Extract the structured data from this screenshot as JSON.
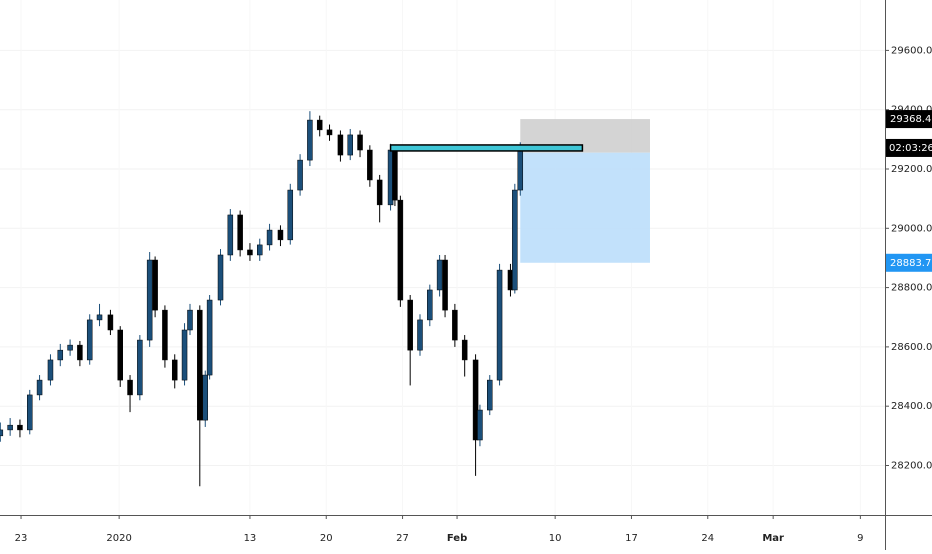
{
  "chart_data": {
    "type": "candlestick",
    "x": [
      -1.9,
      -1.0,
      -0.1,
      0.8,
      1.7,
      2.7,
      3.6,
      4.5,
      5.4,
      6.3,
      7.2,
      8.2,
      9.1,
      10.0,
      10.9,
      11.8,
      12.3,
      13.2,
      14.1,
      15.0,
      15.5,
      16.4,
      16.9,
      17.3,
      18.3,
      19.2,
      20.1,
      21.0,
      21.9,
      22.8,
      23.8,
      24.7,
      25.6,
      26.5,
      27.4,
      28.3,
      29.3,
      30.2,
      31.1,
      32.0,
      32.9,
      33.9,
      34.3,
      34.8,
      35.7,
      36.6,
      37.5,
      38.4,
      38.9,
      39.8,
      40.7,
      41.7,
      42.1,
      43.0,
      43.9,
      44.9,
      45.3,
      45.8
    ],
    "open": [
      28300,
      28320,
      28336,
      28320,
      28438,
      28488,
      28556,
      28589,
      28606,
      28556,
      28691,
      28708,
      28657,
      28488,
      28438,
      28623,
      28893,
      28724,
      28556,
      28488,
      28657,
      28724,
      28353,
      28505,
      28758,
      28910,
      29045,
      28927,
      28910,
      28944,
      28994,
      28961,
      29129,
      29230,
      29365,
      29332,
      29315,
      29247,
      29315,
      29264,
      29163,
      29079,
      29264,
      29095,
      28758,
      28589,
      28691,
      28792,
      28893,
      28724,
      28623,
      28556,
      28286,
      28387,
      28488,
      28859,
      28792,
      29129
    ],
    "high": [
      28345,
      28360,
      28355,
      28455,
      28505,
      28575,
      28610,
      28625,
      28620,
      28710,
      28745,
      28725,
      28670,
      28505,
      28640,
      28920,
      28905,
      28740,
      28575,
      28680,
      28745,
      28740,
      28520,
      28775,
      28930,
      29065,
      29060,
      28950,
      28965,
      29015,
      29010,
      29150,
      29250,
      29395,
      29380,
      29350,
      29330,
      29335,
      29330,
      29280,
      29180,
      29285,
      29280,
      29110,
      28775,
      28710,
      28810,
      28910,
      28910,
      28745,
      28640,
      28575,
      28405,
      28505,
      28880,
      28880,
      29150,
      29290
    ],
    "low": [
      28280,
      28300,
      28295,
      28305,
      28420,
      28470,
      28535,
      28570,
      28535,
      28540,
      28670,
      28640,
      28465,
      28380,
      28420,
      28600,
      28700,
      28530,
      28460,
      28470,
      28640,
      28130,
      28330,
      28490,
      28740,
      28890,
      28905,
      28890,
      28890,
      28925,
      28940,
      28945,
      29110,
      29210,
      29310,
      29295,
      29225,
      29230,
      29240,
      29140,
      29020,
      29060,
      29075,
      28735,
      28470,
      28570,
      28670,
      28770,
      28700,
      28600,
      28500,
      28165,
      28265,
      28370,
      28470,
      28770,
      28780,
      29110
    ],
    "close": [
      28320,
      28336,
      28320,
      28438,
      28488,
      28556,
      28589,
      28606,
      28556,
      28691,
      28708,
      28657,
      28488,
      28438,
      28623,
      28893,
      28724,
      28556,
      28488,
      28657,
      28724,
      28353,
      28505,
      28758,
      28910,
      29045,
      28927,
      28910,
      28944,
      28994,
      28961,
      29129,
      29230,
      29365,
      29332,
      29315,
      29247,
      29315,
      29264,
      29163,
      29079,
      29264,
      29095,
      28758,
      28589,
      28691,
      28792,
      28893,
      28724,
      28623,
      28556,
      28286,
      28387,
      28488,
      28859,
      28792,
      29129,
      29271
    ],
    "up_color": "#1b4f7a",
    "down_color": "#000000",
    "xlim": [
      -1.93,
      79.26
    ],
    "xticks": [
      {
        "value": 0,
        "label": "23"
      },
      {
        "value": 9,
        "label": "2020"
      },
      {
        "value": 21,
        "label": "13"
      },
      {
        "value": 28,
        "label": "20"
      },
      {
        "value": 35,
        "label": "27"
      },
      {
        "value": 40,
        "label": "Feb"
      },
      {
        "value": 49,
        "label": "10"
      },
      {
        "value": 56,
        "label": "17"
      },
      {
        "value": 63,
        "label": "24"
      },
      {
        "value": 69,
        "label": "Mar"
      },
      {
        "value": 77,
        "label": "9"
      }
    ],
    "ylim": [
      28033,
      29770
    ],
    "yticks": [
      {
        "value": 28200,
        "label": "28200.0"
      },
      {
        "value": 28400,
        "label": "28400.0"
      },
      {
        "value": 28600,
        "label": "28600.0"
      },
      {
        "value": 28800,
        "label": "28800.0"
      },
      {
        "value": 29000,
        "label": "29000.0"
      },
      {
        "value": 29200,
        "label": "29200.0"
      },
      {
        "value": 29400,
        "label": "29400.0"
      },
      {
        "value": 29600,
        "label": "29600.0"
      }
    ],
    "grid": true,
    "level": {
      "price": 29271,
      "x": [
        33.9,
        51.5
      ],
      "color": "#3fc6d6"
    },
    "position": {
      "x": [
        45.8,
        57.7
      ],
      "stop": 29368.4,
      "entry": 29255,
      "target": 28883.7,
      "stop_color": "#cccccc",
      "target_color": "#bbdefb"
    },
    "countdown": "02:03:26"
  }
}
